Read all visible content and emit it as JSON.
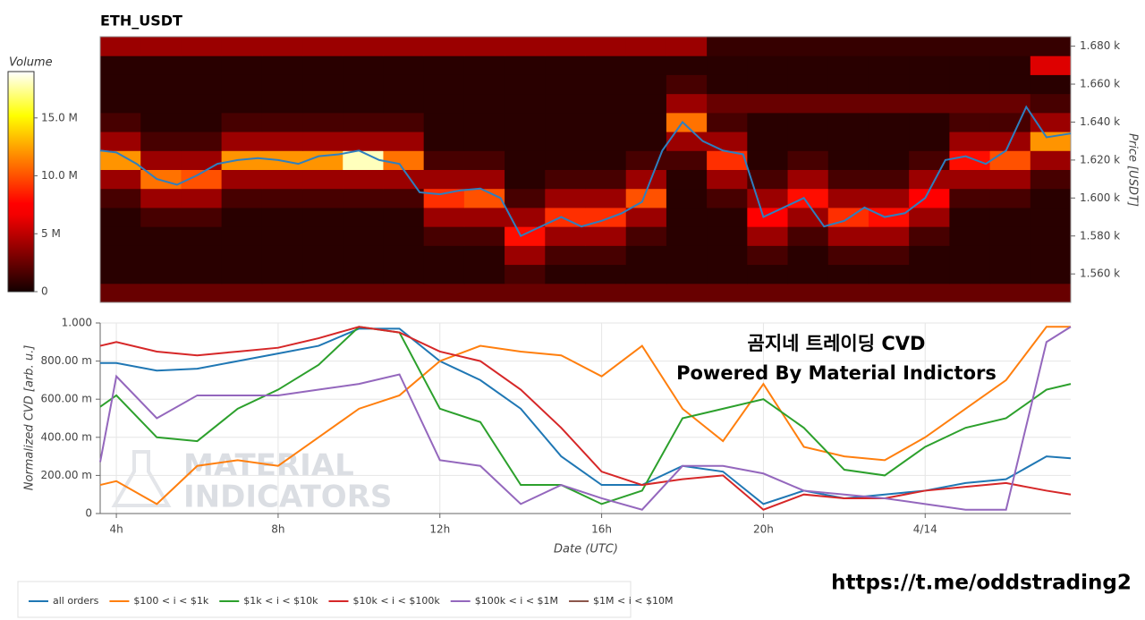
{
  "chart_data": [
    {
      "type": "heatmap",
      "title": "ETH_USDT",
      "ylabel": "Price [USDT]",
      "x": [
        4.1,
        5.1,
        6.1,
        7.1,
        8.1,
        9.1,
        10.1,
        11.1,
        12.1,
        13.1,
        14.1,
        15.1,
        16.1,
        17.1,
        18.1,
        19.1,
        20.1,
        21.1,
        22.1,
        23.1,
        24.1,
        25.1,
        26.1,
        27.1
      ],
      "y": [
        1550,
        1560,
        1570,
        1580,
        1590,
        1600,
        1610,
        1620,
        1630,
        1640,
        1650,
        1660,
        1670,
        1680
      ],
      "z": [
        [
          2.5,
          2.5,
          2.5,
          2.5,
          2.5,
          2.5,
          2.5,
          2.5,
          2.5,
          2.5,
          2.5,
          2.5,
          2.5,
          2.5,
          2.5,
          2.5,
          2.5,
          2.5,
          2.5,
          2.5,
          2.5,
          2.5,
          2.5,
          2.5
        ],
        [
          0.6,
          0.6,
          0.6,
          0.6,
          0.6,
          0.6,
          0.6,
          0.6,
          0.6,
          0.6,
          1.5,
          0.6,
          0.6,
          0.6,
          0.6,
          0.6,
          0.6,
          0.6,
          0.6,
          0.6,
          0.6,
          0.6,
          0.6,
          0.6
        ],
        [
          0.6,
          0.6,
          0.6,
          0.6,
          0.6,
          0.6,
          0.6,
          0.6,
          0.6,
          0.6,
          4,
          1.5,
          1.5,
          0.6,
          0.6,
          0.6,
          1.5,
          0.6,
          1.5,
          1.5,
          0.6,
          0.6,
          0.6,
          0.6
        ],
        [
          0.6,
          0.6,
          0.6,
          0.6,
          0.6,
          0.6,
          0.6,
          0.6,
          1.5,
          1.5,
          8,
          4,
          4,
          1.5,
          0.6,
          0.6,
          4,
          1.5,
          4,
          4,
          1.5,
          0.6,
          0.6,
          0.6
        ],
        [
          0.6,
          1.5,
          1.5,
          0.6,
          0.6,
          0.6,
          0.6,
          0.6,
          4,
          4,
          4,
          9,
          9,
          4,
          0.6,
          0.6,
          7,
          4,
          9,
          8,
          4,
          0.6,
          0.6,
          0.6
        ],
        [
          1.5,
          4,
          4,
          1.5,
          1.5,
          1.5,
          1.5,
          1.5,
          9,
          10,
          1.5,
          4,
          4,
          10,
          0.6,
          1.5,
          4,
          8,
          4,
          4,
          7,
          1.5,
          1.5,
          0.6
        ],
        [
          4,
          11,
          10,
          4,
          4,
          4,
          4,
          4,
          4,
          4,
          0.6,
          1.5,
          1.5,
          4,
          0.6,
          4,
          1.5,
          4,
          1.5,
          1.5,
          4,
          4,
          4,
          1.5
        ],
        [
          12,
          4,
          4,
          12,
          12,
          12,
          18,
          11,
          1.5,
          1.5,
          0.6,
          0.6,
          0.6,
          1.5,
          1.5,
          9,
          0.6,
          1.5,
          0.6,
          0.6,
          1.5,
          8,
          10,
          4
        ],
        [
          4,
          1.5,
          1.5,
          4,
          4,
          4,
          4,
          4,
          0.6,
          0.6,
          0.6,
          0.6,
          0.6,
          0.6,
          4,
          4,
          0.6,
          0.6,
          0.6,
          0.6,
          0.6,
          4,
          4,
          12
        ],
        [
          1.5,
          0.6,
          0.6,
          1.5,
          1.5,
          1.5,
          1.5,
          1.5,
          0.6,
          0.6,
          0.6,
          0.6,
          0.6,
          0.6,
          11,
          1.5,
          0.6,
          0.6,
          0.6,
          0.6,
          0.6,
          1.5,
          1.5,
          4
        ],
        [
          0.6,
          0.6,
          0.6,
          0.6,
          0.6,
          0.6,
          0.6,
          0.6,
          0.6,
          0.6,
          0.6,
          0.6,
          0.6,
          0.6,
          4,
          2.5,
          2.5,
          2.5,
          2.5,
          2.5,
          2.5,
          2.5,
          2.5,
          1.5
        ],
        [
          0.6,
          0.6,
          0.6,
          0.6,
          0.6,
          0.6,
          0.6,
          0.6,
          0.6,
          0.6,
          0.6,
          0.6,
          0.6,
          0.6,
          1.5,
          0.6,
          0.6,
          0.6,
          0.6,
          0.6,
          0.6,
          0.6,
          0.6,
          0.6
        ],
        [
          0.6,
          0.6,
          0.6,
          0.6,
          0.6,
          0.6,
          0.6,
          0.6,
          0.6,
          0.6,
          0.6,
          0.6,
          0.6,
          0.6,
          0.6,
          0.6,
          0.6,
          0.6,
          0.6,
          0.6,
          0.6,
          0.6,
          0.6,
          6
        ],
        [
          4,
          4,
          4,
          4,
          4,
          4,
          4,
          4,
          4,
          4,
          4,
          4,
          4,
          4,
          4,
          1,
          1,
          1,
          1,
          1,
          1,
          1,
          1,
          1
        ]
      ],
      "xlim": [
        3.6,
        27.6
      ],
      "ylim": [
        1545,
        1685
      ],
      "yticks": [
        {
          "value": 1560,
          "label": "1.560 k"
        },
        {
          "value": 1580,
          "label": "1.580 k"
        },
        {
          "value": 1600,
          "label": "1.600 k"
        },
        {
          "value": 1620,
          "label": "1.620 k"
        },
        {
          "value": 1640,
          "label": "1.640 k"
        },
        {
          "value": 1660,
          "label": "1.660 k"
        },
        {
          "value": 1680,
          "label": "1.680 k"
        }
      ],
      "colorbar": {
        "title": "Volume",
        "zlim": [
          0,
          19
        ],
        "ticks": [
          0,
          {
            "value": 5,
            "label": "5 M"
          },
          {
            "value": 10,
            "label": "10.0 M"
          },
          {
            "value": 15,
            "label": "15.0 M"
          }
        ]
      },
      "line": {
        "color": "#2e7fbf",
        "x": [
          3.6,
          4,
          4.5,
          5,
          5.5,
          6,
          6.5,
          7,
          7.5,
          8,
          8.5,
          9,
          9.5,
          10,
          10.5,
          11,
          11.5,
          12,
          12.5,
          13,
          13.5,
          14,
          14.5,
          15,
          15.5,
          16,
          16.5,
          17,
          17.5,
          18,
          18.5,
          19,
          19.5,
          20,
          20.5,
          21,
          21.5,
          22,
          22.5,
          23,
          23.5,
          24,
          24.5,
          25,
          25.5,
          26,
          26.5,
          27,
          27.6
        ],
        "values": [
          1625,
          1624,
          1618,
          1610,
          1607,
          1612,
          1618,
          1620,
          1621,
          1620,
          1618,
          1622,
          1623,
          1625,
          1620,
          1618,
          1603,
          1602,
          1604,
          1605,
          1600,
          1580,
          1585,
          1590,
          1585,
          1588,
          1592,
          1598,
          1625,
          1640,
          1630,
          1625,
          1623,
          1590,
          1595,
          1600,
          1585,
          1588,
          1595,
          1590,
          1592,
          1600,
          1620,
          1622,
          1618,
          1625,
          1648,
          1632,
          1634
        ]
      }
    },
    {
      "type": "line",
      "ylabel": "Normalized CVD [arb. u.]",
      "xlabel": "Date (UTC)",
      "x": [
        3.6,
        4,
        5,
        6,
        7,
        8,
        9,
        10,
        11,
        12,
        13,
        14,
        15,
        16,
        17,
        18,
        19,
        20,
        21,
        22,
        23,
        24,
        25,
        26,
        27,
        27.6
      ],
      "series": [
        {
          "name": "all orders",
          "color": "#1f77b4",
          "values": [
            0.79,
            0.79,
            0.75,
            0.76,
            0.8,
            0.84,
            0.88,
            0.97,
            0.97,
            0.8,
            0.7,
            0.55,
            0.3,
            0.15,
            0.15,
            0.25,
            0.22,
            0.05,
            0.12,
            0.08,
            0.1,
            0.12,
            0.16,
            0.18,
            0.3,
            0.29
          ]
        },
        {
          "name": "$100 < i < $1k",
          "color": "#ff7f0e",
          "values": [
            0.15,
            0.17,
            0.05,
            0.25,
            0.28,
            0.25,
            0.4,
            0.55,
            0.62,
            0.8,
            0.88,
            0.85,
            0.83,
            0.72,
            0.88,
            0.55,
            0.38,
            0.68,
            0.35,
            0.3,
            0.28,
            0.4,
            0.55,
            0.7,
            0.98,
            0.98
          ]
        },
        {
          "name": "$1k < i < $10k",
          "color": "#2ca02c",
          "values": [
            0.56,
            0.62,
            0.4,
            0.38,
            0.55,
            0.65,
            0.78,
            0.98,
            0.95,
            0.55,
            0.48,
            0.15,
            0.15,
            0.05,
            0.12,
            0.5,
            0.55,
            0.6,
            0.45,
            0.23,
            0.2,
            0.35,
            0.45,
            0.5,
            0.65,
            0.68
          ]
        },
        {
          "name": "$10k < i < $100k",
          "color": "#d62728",
          "values": [
            0.88,
            0.9,
            0.85,
            0.83,
            0.85,
            0.87,
            0.92,
            0.98,
            0.95,
            0.85,
            0.8,
            0.65,
            0.45,
            0.22,
            0.15,
            0.18,
            0.2,
            0.02,
            0.1,
            0.08,
            0.08,
            0.12,
            0.14,
            0.16,
            0.12,
            0.1
          ]
        },
        {
          "name": "$100k < i < $1M",
          "color": "#9467bd",
          "values": [
            0.27,
            0.72,
            0.5,
            0.62,
            0.62,
            0.62,
            0.65,
            0.68,
            0.73,
            0.28,
            0.25,
            0.05,
            0.15,
            0.08,
            0.02,
            0.25,
            0.25,
            0.21,
            0.12,
            0.1,
            0.08,
            0.05,
            0.02,
            0.02,
            0.9,
            0.98
          ]
        },
        {
          "name": "$1M < i < $10M",
          "color": "#8c564b",
          "values": [
            null,
            null,
            null,
            null,
            null,
            null,
            null,
            null,
            null,
            null,
            null,
            null,
            null,
            null,
            null,
            null,
            null,
            null,
            null,
            null,
            null,
            null,
            null,
            null,
            null,
            null
          ]
        }
      ],
      "xlim": [
        3.6,
        27.6
      ],
      "ylim": [
        0,
        1
      ],
      "xticks": [
        {
          "value": 4,
          "label": "4h"
        },
        {
          "value": 8,
          "label": "8h"
        },
        {
          "value": 12,
          "label": "12h"
        },
        {
          "value": 16,
          "label": "16h"
        },
        {
          "value": 20,
          "label": "20h"
        },
        {
          "value": 24,
          "label": "4/14"
        }
      ],
      "yticks": [
        0,
        {
          "value": 0.2,
          "label": "200.00 m"
        },
        {
          "value": 0.4,
          "label": "400.00 m"
        },
        {
          "value": 0.6,
          "label": "600.00 m"
        },
        {
          "value": 0.8,
          "label": "800.00 m"
        },
        {
          "value": 1,
          "label": "1.000"
        }
      ],
      "grid": true,
      "annotations": [
        "곰지네 트레이딩 CVD",
        "Powered By Material Indictors"
      ],
      "watermark": [
        "MATERIAL",
        "INDICATORS"
      ]
    }
  ],
  "footer": "https://t.me/oddstrading2"
}
